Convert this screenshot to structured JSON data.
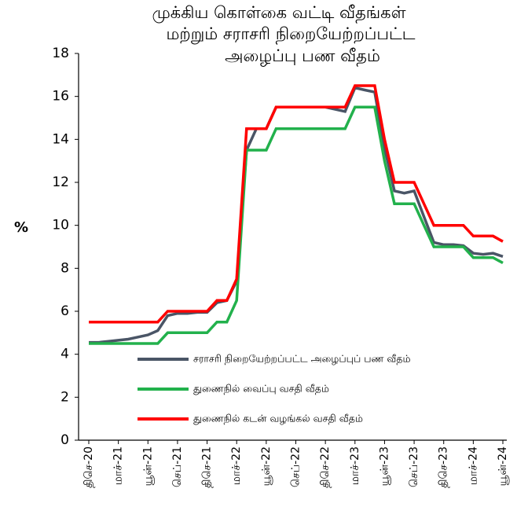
{
  "chart_data": {
    "type": "line",
    "title": [
      "முக்கிய கொள்கை வட்டி வீதங்கள்",
      "மற்றும் சராசரி நிறையேற்றப்பட்ட",
      "அழைப்பு பண வீதம்"
    ],
    "ylabel": "%",
    "categories": [
      "திசெ-20",
      null,
      null,
      "மாச்-21",
      null,
      null,
      "யூன்-21",
      null,
      null,
      "செப்-21",
      null,
      null,
      "திசெ-21",
      null,
      null,
      "மாச்-22",
      null,
      null,
      "யூன்-22",
      null,
      null,
      "செப்-22",
      null,
      null,
      "திசெ-22",
      null,
      null,
      "மாச்-23",
      null,
      null,
      "யூன்-23",
      null,
      null,
      "செப்-23",
      null,
      null,
      "திசெ-23",
      null,
      null,
      "மாச்-24",
      null,
      null,
      "யூன்-24"
    ],
    "series": [
      {
        "name": "சராசரி நிறையேற்றப்பட்ட அழைப்புப் பண வீதம்",
        "color": "#4a5566",
        "values": [
          4.55,
          4.55,
          4.6,
          4.65,
          4.7,
          4.8,
          4.9,
          5.1,
          5.8,
          5.9,
          5.9,
          5.95,
          5.95,
          6.4,
          6.5,
          7.4,
          13.5,
          14.5,
          14.5,
          15.5,
          15.5,
          15.5,
          15.5,
          15.5,
          15.5,
          15.4,
          15.3,
          16.4,
          16.3,
          16.2,
          13.6,
          11.6,
          11.5,
          11.6,
          10.4,
          9.2,
          9.1,
          9.1,
          9.05,
          8.7,
          8.65,
          8.7,
          8.55
        ]
      },
      {
        "name": "துணைநில் வைப்பு வசதி வீதம்",
        "color": "#22b14c",
        "values": [
          4.5,
          4.5,
          4.5,
          4.5,
          4.5,
          4.5,
          4.5,
          4.5,
          5.0,
          5.0,
          5.0,
          5.0,
          5.0,
          5.5,
          5.5,
          6.5,
          13.5,
          13.5,
          13.5,
          14.5,
          14.5,
          14.5,
          14.5,
          14.5,
          14.5,
          14.5,
          14.5,
          15.5,
          15.5,
          15.5,
          13.0,
          11.0,
          11.0,
          11.0,
          10.0,
          9.0,
          9.0,
          9.0,
          9.0,
          8.5,
          8.5,
          8.5,
          8.25
        ]
      },
      {
        "name": "துணைநில் கடன் வழங்கல் வசதி வீதம்",
        "color": "#ff0000",
        "values": [
          5.5,
          5.5,
          5.5,
          5.5,
          5.5,
          5.5,
          5.5,
          5.5,
          6.0,
          6.0,
          6.0,
          6.0,
          6.0,
          6.5,
          6.5,
          7.5,
          14.5,
          14.5,
          14.5,
          15.5,
          15.5,
          15.5,
          15.5,
          15.5,
          15.5,
          15.5,
          15.5,
          16.5,
          16.5,
          16.5,
          14.0,
          12.0,
          12.0,
          12.0,
          11.0,
          10.0,
          10.0,
          10.0,
          10.0,
          9.5,
          9.5,
          9.5,
          9.25
        ]
      }
    ],
    "ylim": [
      0,
      18
    ],
    "yticks": [
      0,
      2,
      4,
      6,
      8,
      10,
      12,
      14,
      16,
      18
    ],
    "grid": false
  }
}
